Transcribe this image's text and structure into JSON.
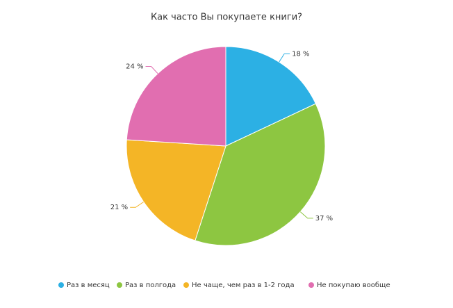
{
  "chart_data": {
    "type": "pie",
    "title": "Как часто Вы покупаете книги?",
    "categories": [
      "Раз в месяц",
      "Раз в полгода",
      "Не чаще, чем раз в 1-2 года",
      "Не покупаю вообще"
    ],
    "values": [
      18,
      37,
      21,
      24
    ],
    "value_labels": [
      "18 %",
      "37 %",
      "21 %",
      "24 %"
    ],
    "colors": [
      "#2cb0e4",
      "#8dc641",
      "#f4b526",
      "#e16eb0"
    ],
    "legend": "bottom"
  }
}
